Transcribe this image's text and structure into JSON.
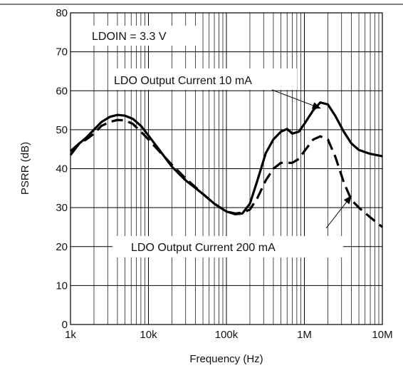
{
  "chart_data": {
    "type": "line",
    "title": "",
    "xlabel": "Frequency (Hz)",
    "ylabel": "PSRR (dB)",
    "xscale": "log",
    "xlim": [
      1000,
      10000000
    ],
    "ylim": [
      0,
      80
    ],
    "grid": true,
    "x_tick_labels": [
      "1k",
      "10k",
      "100k",
      "1M",
      "10M"
    ],
    "y_tick_labels": [
      "0",
      "10",
      "20",
      "30",
      "40",
      "50",
      "60",
      "70",
      "80"
    ],
    "condition_label": "LDOIN = 3.3 V",
    "series": [
      {
        "name": "LDO Output Current 10 mA",
        "style": "solid",
        "color": "#000000",
        "points": [
          [
            1000,
            43.5
          ],
          [
            1300,
            46.5
          ],
          [
            1600,
            48
          ],
          [
            2000,
            50
          ],
          [
            2500,
            52
          ],
          [
            3200,
            53.3
          ],
          [
            4000,
            53.8
          ],
          [
            5000,
            53.6
          ],
          [
            6300,
            52.8
          ],
          [
            8000,
            51
          ],
          [
            10000,
            48.5
          ],
          [
            13000,
            45.5
          ],
          [
            20000,
            40.5
          ],
          [
            30000,
            37
          ],
          [
            50000,
            33.5
          ],
          [
            70000,
            31
          ],
          [
            100000,
            29
          ],
          [
            130000,
            28.3
          ],
          [
            160000,
            28.5
          ],
          [
            200000,
            31
          ],
          [
            250000,
            37
          ],
          [
            320000,
            44
          ],
          [
            400000,
            47.5
          ],
          [
            500000,
            49.5
          ],
          [
            600000,
            50.2
          ],
          [
            700000,
            49
          ],
          [
            850000,
            49.5
          ],
          [
            1000000,
            51.5
          ],
          [
            1300000,
            55
          ],
          [
            1600000,
            57
          ],
          [
            2000000,
            56.5
          ],
          [
            2500000,
            53.5
          ],
          [
            3200000,
            49.5
          ],
          [
            4000000,
            46.5
          ],
          [
            5000000,
            44.8
          ],
          [
            7000000,
            43.8
          ],
          [
            10000000,
            43.2
          ]
        ]
      },
      {
        "name": "LDO Output Current 200 mA",
        "style": "dashed",
        "color": "#000000",
        "points": [
          [
            1000,
            44.5
          ],
          [
            1300,
            46.5
          ],
          [
            1600,
            47.5
          ],
          [
            2000,
            49
          ],
          [
            2500,
            51
          ],
          [
            3200,
            52
          ],
          [
            4000,
            52.5
          ],
          [
            5000,
            52.4
          ],
          [
            6300,
            51.5
          ],
          [
            8000,
            49.5
          ],
          [
            10000,
            47.5
          ],
          [
            13000,
            45
          ],
          [
            20000,
            41
          ],
          [
            30000,
            37.5
          ],
          [
            50000,
            33.5
          ],
          [
            70000,
            31
          ],
          [
            100000,
            29
          ],
          [
            130000,
            28.5
          ],
          [
            160000,
            28.7
          ],
          [
            200000,
            29.5
          ],
          [
            250000,
            32.5
          ],
          [
            320000,
            37
          ],
          [
            400000,
            40
          ],
          [
            500000,
            41.5
          ],
          [
            700000,
            41.5
          ],
          [
            850000,
            42.5
          ],
          [
            1000000,
            44.5
          ],
          [
            1300000,
            47.5
          ],
          [
            1600000,
            48.3
          ],
          [
            2000000,
            47.5
          ],
          [
            2500000,
            43
          ],
          [
            3200000,
            36.5
          ],
          [
            4000000,
            32
          ],
          [
            5000000,
            30
          ],
          [
            7000000,
            27.5
          ],
          [
            10000000,
            25
          ]
        ]
      }
    ],
    "annotations": [
      {
        "text": "LDO Output Current 10 mA",
        "points_to": [
          1600000,
          55.5
        ]
      },
      {
        "text": "LDO Output Current 200 mA",
        "points_to": [
          4000000,
          33
        ]
      }
    ]
  }
}
